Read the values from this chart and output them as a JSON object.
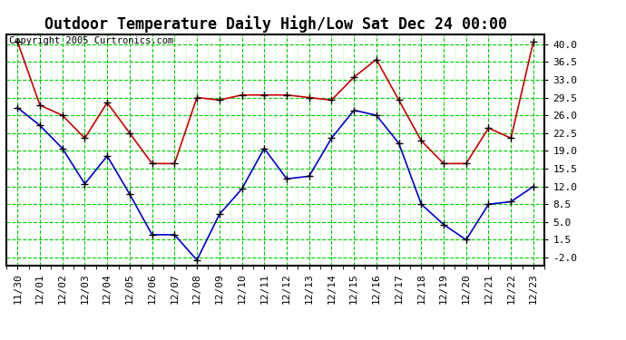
{
  "title": "Outdoor Temperature Daily High/Low Sat Dec 24 00:00",
  "copyright": "Copyright 2005 Curtronics.com",
  "x_labels": [
    "11/30",
    "12/01",
    "12/02",
    "12/03",
    "12/04",
    "12/05",
    "12/06",
    "12/07",
    "12/08",
    "12/09",
    "12/10",
    "12/11",
    "12/12",
    "12/13",
    "12/14",
    "12/15",
    "12/16",
    "12/17",
    "12/18",
    "12/19",
    "12/20",
    "12/21",
    "12/22",
    "12/23"
  ],
  "high_values": [
    40.5,
    28.0,
    26.0,
    21.5,
    28.5,
    22.5,
    16.5,
    16.5,
    29.5,
    29.0,
    30.0,
    30.0,
    30.0,
    29.5,
    29.0,
    33.5,
    37.0,
    29.0,
    21.0,
    16.5,
    16.5,
    23.5,
    21.5,
    40.5
  ],
  "low_values": [
    27.5,
    24.0,
    19.5,
    12.5,
    18.0,
    10.5,
    2.5,
    2.5,
    -2.5,
    6.5,
    11.5,
    19.5,
    13.5,
    14.0,
    21.5,
    27.0,
    26.0,
    20.5,
    8.5,
    4.5,
    1.5,
    8.5,
    9.0,
    12.0
  ],
  "high_color": "#cc0000",
  "low_color": "#0000cc",
  "bg_color": "#ffffff",
  "plot_bg_color": "#ffffff",
  "grid_color": "#00cc00",
  "grid_minor_color": "#ccffcc",
  "y_ticks": [
    -2.0,
    1.5,
    5.0,
    8.5,
    12.0,
    15.5,
    19.0,
    22.5,
    26.0,
    29.5,
    33.0,
    36.5,
    40.0
  ],
  "ylim": [
    -3.5,
    42.0
  ],
  "title_fontsize": 12,
  "axis_fontsize": 8,
  "copyright_fontsize": 7.5,
  "marker": "+",
  "marker_size": 6,
  "marker_color": "black",
  "line_width": 1.2
}
